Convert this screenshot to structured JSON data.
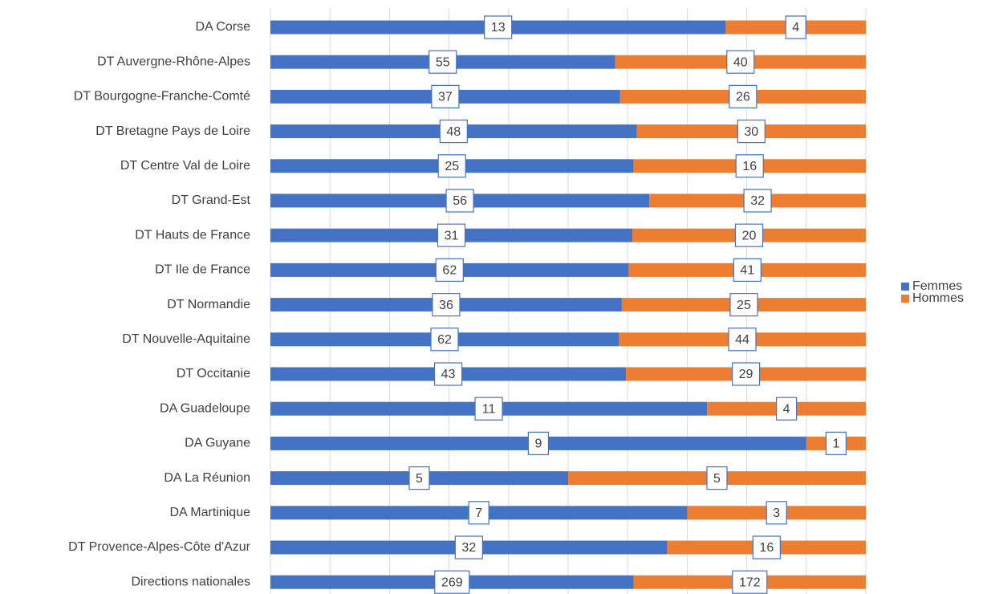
{
  "chart_data": {
    "type": "bar_percent_stacked_horizontal",
    "categories": [
      "DA Corse",
      "DT Auvergne-Rhône-Alpes",
      "DT Bourgogne-Franche-Comté",
      "DT Bretagne Pays de Loire",
      "DT Centre Val de Loire",
      "DT Grand-Est",
      "DT Hauts de France",
      "DT Ile de France",
      "DT Normandie",
      "DT Nouvelle-Aquitaine",
      "DT Occitanie",
      "DA Guadeloupe",
      "DA Guyane",
      "DA La Réunion",
      "DA Martinique",
      "DT Provence-Alpes-Côte d'Azur",
      "Directions nationales"
    ],
    "series": [
      {
        "name": "Femmes",
        "color": "#4472c4",
        "values": [
          13,
          55,
          37,
          48,
          25,
          56,
          31,
          62,
          36,
          62,
          43,
          11,
          9,
          5,
          7,
          32,
          269
        ]
      },
      {
        "name": "Hommes",
        "color": "#ed7d31",
        "values": [
          4,
          40,
          26,
          30,
          16,
          32,
          20,
          41,
          25,
          44,
          29,
          4,
          1,
          5,
          3,
          16,
          172
        ]
      }
    ],
    "xlim": [
      0,
      100
    ],
    "xticks": [
      0,
      10,
      20,
      30,
      40,
      50,
      60,
      70,
      80,
      90,
      100
    ],
    "grid": true,
    "legend": "right"
  }
}
